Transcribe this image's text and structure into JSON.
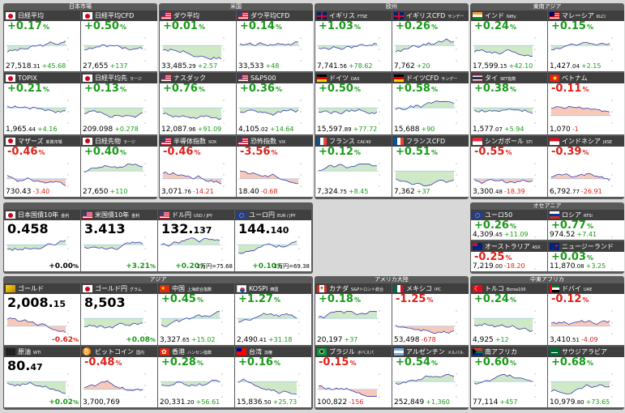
{
  "groups": [
    {
      "title": "日本市場",
      "tiles": [
        {
          "name": "日経平均",
          "sub": "",
          "flag": "jp",
          "change": "+0.17",
          "dir": "up",
          "level": "27,518",
          "level_sm": ".31",
          "delta": "+45.68"
        },
        {
          "name": "日経平均CFD",
          "sub": "",
          "flag": "jp",
          "change": "+0.50",
          "dir": "up",
          "level": "27,655",
          "level_sm": "",
          "delta": "+137"
        },
        {
          "name": "TOPIX",
          "sub": "",
          "flag": "jp",
          "change": "+0.21",
          "dir": "up",
          "level": "1,965",
          "level_sm": ".44",
          "delta": "+4.16"
        },
        {
          "name": "日経平均先",
          "sub": "ラージ",
          "flag": "jp",
          "change": "+0.13",
          "dir": "up",
          "level": "209.098",
          "level_sm": "",
          "delta": "+0.278"
        },
        {
          "name": "マザーズ",
          "sub": "新興市場",
          "flag": "jp",
          "change": "-0.46",
          "dir": "dn",
          "level": "730.43",
          "level_sm": "",
          "delta": "-3.40"
        },
        {
          "name": "日経先物",
          "sub": "ラージ",
          "flag": "jp",
          "change": "+0.40",
          "dir": "up",
          "level": "27,650",
          "level_sm": "",
          "delta": "+110"
        }
      ]
    },
    {
      "title": "米国",
      "tiles": [
        {
          "name": "ダウ平均",
          "sub": "",
          "flag": "us",
          "change": "+0.01",
          "dir": "up",
          "level": "33,485",
          "level_sm": ".29",
          "delta": "+2.57"
        },
        {
          "name": "ダウ平均CFD",
          "sub": "",
          "flag": "us",
          "change": "+0.14",
          "dir": "up",
          "level": "33,533",
          "level_sm": "",
          "delta": "+48"
        },
        {
          "name": "ナスダック",
          "sub": "",
          "flag": "us",
          "change": "+0.76",
          "dir": "up",
          "level": "12,087",
          "level_sm": ".96",
          "delta": "+91.09"
        },
        {
          "name": "S&P500",
          "sub": "",
          "flag": "us",
          "change": "+0.36",
          "dir": "up",
          "level": "4,105",
          "level_sm": ".02",
          "delta": "+14.64"
        },
        {
          "name": "半導体指数",
          "sub": "SOX",
          "flag": "us",
          "change": "-0.46",
          "dir": "dn",
          "level": "3,071",
          "level_sm": ".76",
          "delta": "-14.21"
        },
        {
          "name": "恐怖指数",
          "sub": "VIX",
          "flag": "us",
          "change": "-3.56",
          "dir": "dn",
          "level": "18.40",
          "level_sm": "",
          "delta": "-0.68"
        }
      ]
    },
    {
      "title": "欧州",
      "tiles": [
        {
          "name": "イギリス",
          "sub": "FTSE",
          "flag": "uk",
          "change": "+1.03",
          "dir": "up",
          "level": "7,741",
          "level_sm": ".56",
          "delta": "+78.62"
        },
        {
          "name": "イギリスCFD",
          "sub": "サンデー",
          "flag": "uk",
          "change": "+0.26",
          "dir": "up",
          "level": "7,762",
          "level_sm": "",
          "delta": "+20"
        },
        {
          "name": "ドイツ",
          "sub": "DAX",
          "flag": "de",
          "change": "+0.50",
          "dir": "up",
          "level": "15,597",
          "level_sm": ".89",
          "delta": "+77.72"
        },
        {
          "name": "ドイツCFD",
          "sub": "サンデー",
          "flag": "de",
          "change": "+0.58",
          "dir": "up",
          "level": "15,688",
          "level_sm": "",
          "delta": "+90"
        },
        {
          "name": "フランス",
          "sub": "CAC40",
          "flag": "fr",
          "change": "+0.12",
          "dir": "up",
          "level": "7,324",
          "level_sm": ".75",
          "delta": "+8.45"
        },
        {
          "name": "フランスCFD",
          "sub": "",
          "flag": "fr",
          "change": "+0.51",
          "dir": "up",
          "level": "7,362",
          "level_sm": "",
          "delta": "+37"
        }
      ]
    },
    {
      "title": "東南アジア",
      "tiles": [
        {
          "name": "インド",
          "sub": "Nifty",
          "flag": "in",
          "change": "+0.24",
          "dir": "up",
          "level": "17,599",
          "level_sm": ".15",
          "delta": "+42.10"
        },
        {
          "name": "マレーシア",
          "sub": "KLCI",
          "flag": "my",
          "change": "+0.15",
          "dir": "up",
          "level": "1,427",
          "level_sm": ".04",
          "delta": "+2.15"
        },
        {
          "name": "タイ",
          "sub": "SET指数",
          "flag": "th",
          "change": "+0.38",
          "dir": "up",
          "level": "1,577",
          "level_sm": ".07",
          "delta": "+5.94"
        },
        {
          "name": "ベトナム",
          "sub": "",
          "flag": "vn",
          "change": "-0.11",
          "dir": "dn",
          "level": "1,070",
          "level_sm": "",
          "delta": "-1"
        },
        {
          "name": "シンガポール",
          "sub": "STI",
          "flag": "sg",
          "change": "-0.55",
          "dir": "dn",
          "level": "3,300",
          "level_sm": ".48",
          "delta": "-18.39"
        },
        {
          "name": "インドネシア",
          "sub": "JKSE",
          "flag": "id",
          "change": "-0.39",
          "dir": "dn",
          "level": "6,792",
          "level_sm": ".77",
          "delta": "-26.91"
        }
      ]
    },
    {
      "title": "",
      "tiles": [
        {
          "name": "日本国債10年",
          "sub": "金利",
          "flag": "jp",
          "big": "0.458",
          "big_sm": "",
          "right": "+0.00",
          "right_u": "%",
          "dir": "ntr"
        },
        {
          "name": "米国債10年",
          "sub": "金利",
          "flag": "us",
          "big": "3.413",
          "big_sm": "",
          "right": "+3.21",
          "right_u": "%",
          "dir": "up"
        },
        {
          "name": "ドル円",
          "sub": "USD / JPY",
          "flag": "us",
          "big": "132.",
          "big_sm": "137",
          "right": "+0.20",
          "right_u": "%",
          "mini": "1万円=75.68",
          "dir": "up"
        },
        {
          "name": "ユーロ円",
          "sub": "EUR / JPY",
          "flag": "eu",
          "big": "144.",
          "big_sm": "140",
          "right": "+0.10",
          "right_u": "%",
          "mini": "1万円=69.38",
          "dir": "up"
        }
      ]
    },
    {
      "title": "オセアニア",
      "tiles": [
        {
          "name": "ユーロ50",
          "sub": "",
          "flag": "eu",
          "change": "+0.26",
          "dir": "up",
          "level": "4,309",
          "level_sm": ".45",
          "delta": "+11.09"
        },
        {
          "name": "ロシア",
          "sub": "RTSI",
          "flag": "ru",
          "change": "+0.77",
          "dir": "up",
          "level": "974.52",
          "level_sm": "",
          "delta": "+7.41"
        },
        {
          "name": "オーストラリア",
          "sub": "ASX",
          "flag": "au",
          "change": "-0.25",
          "dir": "dn",
          "level": "7,219",
          "level_sm": ".00",
          "delta": "-18.20"
        },
        {
          "name": "ニュージーランド",
          "sub": "",
          "flag": "nz",
          "change": "+0.03",
          "dir": "up",
          "level": "11,870",
          "level_sm": ".08",
          "delta": "+3.25"
        }
      ]
    },
    {
      "title": "アジア",
      "tiles": [
        {
          "name": "ゴールド",
          "sub": "",
          "flag": "gold",
          "big": "2,008.",
          "big_sm": "15",
          "right": "-0.62",
          "right_u": "%",
          "dir": "dn"
        },
        {
          "name": "ゴールド円",
          "sub": "グラム",
          "flag": "jp",
          "big": "8,503",
          "big_sm": "",
          "right": "+0.08",
          "right_u": "%",
          "dir": "up"
        },
        {
          "name": "中国",
          "sub": "上海総合指数",
          "flag": "cn",
          "change": "+0.45",
          "dir": "up",
          "level": "3,327",
          "level_sm": ".65",
          "delta": "+15.02"
        },
        {
          "name": "KOSPI",
          "sub": "韓国",
          "flag": "kr",
          "change": "+1.27",
          "dir": "up",
          "level": "2,490",
          "level_sm": ".41",
          "delta": "+31.18"
        },
        {
          "name": "原油",
          "sub": "WTI",
          "flag": "oil",
          "big": "80.",
          "big_sm": "47",
          "right": "+0.02",
          "right_u": "%",
          "dir": "up"
        },
        {
          "name": "ビットコイン",
          "sub": "国内",
          "flag": "btc",
          "change": "-0.48",
          "dir": "dn",
          "level": "3,700,769",
          "level_sm": "",
          "delta": ""
        },
        {
          "name": "香港",
          "sub": "ハンセン指数",
          "flag": "hk",
          "change": "+0.28",
          "dir": "up",
          "level": "20,331",
          "level_sm": ".20",
          "delta": "+56.61"
        },
        {
          "name": "台湾",
          "sub": "加権",
          "flag": "tw",
          "change": "+0.16",
          "dir": "up",
          "level": "15,836",
          "level_sm": ".50",
          "delta": "+25.73"
        }
      ]
    },
    {
      "title": "アメリカ大陸",
      "tiles": [
        {
          "name": "カナダ",
          "sub": "S&Pトロント総合",
          "flag": "ca",
          "change": "+0.18",
          "dir": "up",
          "level": "20,197",
          "level_sm": "",
          "delta": "+37"
        },
        {
          "name": "メキシコ",
          "sub": "IPC",
          "flag": "mx",
          "change": "-1.25",
          "dir": "dn",
          "level": "53,498",
          "level_sm": "",
          "delta": "-678"
        },
        {
          "name": "ブラジル",
          "sub": "ボベスパ",
          "flag": "br",
          "change": "-0.15",
          "dir": "dn",
          "level": "100,822",
          "level_sm": "",
          "delta": "-156"
        },
        {
          "name": "アルゼンチン",
          "sub": "メルバル",
          "flag": "ar",
          "change": "+0.54",
          "dir": "up",
          "level": "252,849",
          "level_sm": "",
          "delta": "+1,360"
        }
      ]
    },
    {
      "title": "中東アフリカ",
      "tiles": [
        {
          "name": "トルコ",
          "sub": "Borsa100",
          "flag": "tr",
          "change": "+0.24",
          "dir": "up",
          "level": "4,925",
          "level_sm": "",
          "delta": "+12"
        },
        {
          "name": "ドバイ",
          "sub": "UAE",
          "flag": "ae",
          "change": "-0.12",
          "dir": "dn",
          "level": "3,410",
          "level_sm": ".51",
          "delta": "-4.09"
        },
        {
          "name": "南アフリカ",
          "sub": "",
          "flag": "za",
          "change": "+0.60",
          "dir": "up",
          "level": "77,114",
          "level_sm": "",
          "delta": "+457"
        },
        {
          "name": "サウジアラビア",
          "sub": "",
          "flag": "sa",
          "change": "+0.68",
          "dir": "up",
          "level": "10,979",
          "level_sm": ".80",
          "delta": "+73.65"
        }
      ]
    }
  ],
  "unit": "%",
  "colors": {
    "up": "#1a9a1a",
    "down": "#e0201a",
    "header": "#3f3f3f",
    "panel": "#5a5a5a"
  }
}
